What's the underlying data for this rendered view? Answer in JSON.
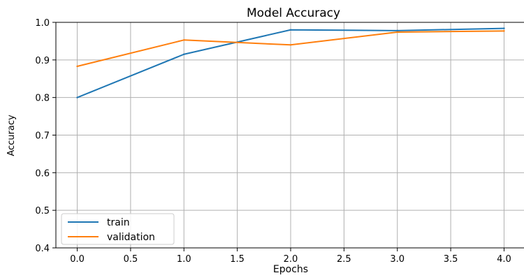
{
  "chart_data": {
    "type": "line",
    "title": "Model Accuracy",
    "xlabel": "Epochs",
    "ylabel": "Accuracy",
    "xlim": [
      -0.2,
      4.2
    ],
    "ylim": [
      0.4,
      1.0
    ],
    "xticks": [
      "0.0",
      "0.5",
      "1.0",
      "1.5",
      "2.0",
      "2.5",
      "3.0",
      "3.5",
      "4.0"
    ],
    "yticks": [
      "0.4",
      "0.5",
      "0.6",
      "0.7",
      "0.8",
      "0.9",
      "1.0"
    ],
    "grid": true,
    "legend_position": "lower-left",
    "x": [
      0,
      1,
      2,
      3,
      4
    ],
    "series": [
      {
        "name": "train",
        "color": "#1f77b4",
        "values": [
          0.8,
          0.915,
          0.98,
          0.978,
          0.984
        ]
      },
      {
        "name": "validation",
        "color": "#ff7f0e",
        "values": [
          0.883,
          0.953,
          0.94,
          0.974,
          0.977
        ]
      }
    ]
  }
}
